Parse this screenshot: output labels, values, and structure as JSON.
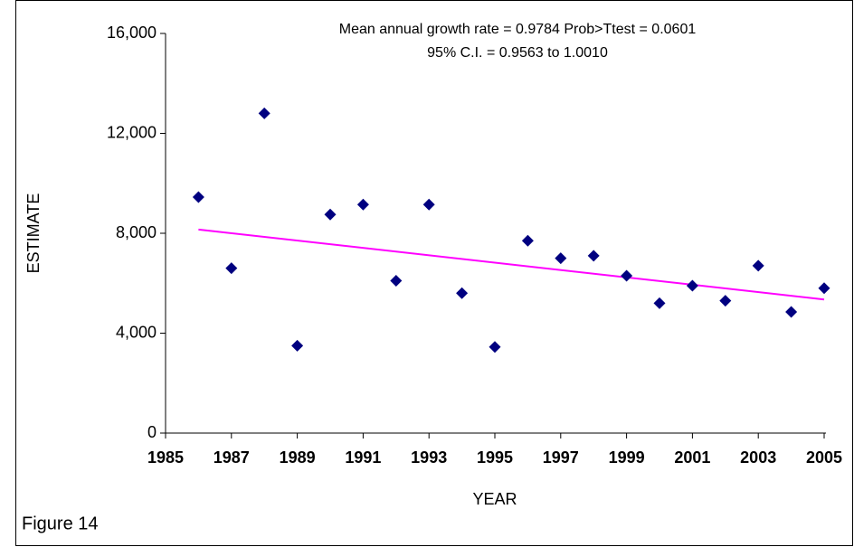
{
  "chart_data": {
    "type": "scatter",
    "annotations": [
      "Mean annual growth rate = 0.9784  Prob>Ttest = 0.0601",
      "95% C.I. = 0.9563 to 1.0010"
    ],
    "xlabel": "YEAR",
    "ylabel": "ESTIMATE",
    "caption": "Figure 14",
    "x": [
      1986,
      1987,
      1988,
      1989,
      1990,
      1991,
      1992,
      1993,
      1994,
      1995,
      1996,
      1997,
      1998,
      1999,
      2000,
      2001,
      2002,
      2003,
      2004,
      2005
    ],
    "values": [
      9450,
      6600,
      12800,
      3500,
      8750,
      9150,
      6100,
      9150,
      5600,
      3450,
      7700,
      7000,
      7100,
      6300,
      5200,
      5900,
      5300,
      6700,
      4850,
      5800
    ],
    "color": "#000080",
    "trendline": {
      "x": [
        1986,
        2005
      ],
      "values": [
        8150,
        5350
      ],
      "color": "#ff00ff"
    },
    "xlim": [
      1985,
      2005
    ],
    "xticks": [
      1985,
      1987,
      1989,
      1991,
      1993,
      1995,
      1997,
      1999,
      2001,
      2003,
      2005
    ],
    "ylim": [
      0,
      16000
    ],
    "yticks": [
      0,
      {
        "value": 4000,
        "label": "4,000"
      },
      {
        "value": 8000,
        "label": "8,000"
      },
      {
        "value": 12000,
        "label": "12,000"
      },
      {
        "value": 16000,
        "label": "16,000"
      }
    ]
  }
}
